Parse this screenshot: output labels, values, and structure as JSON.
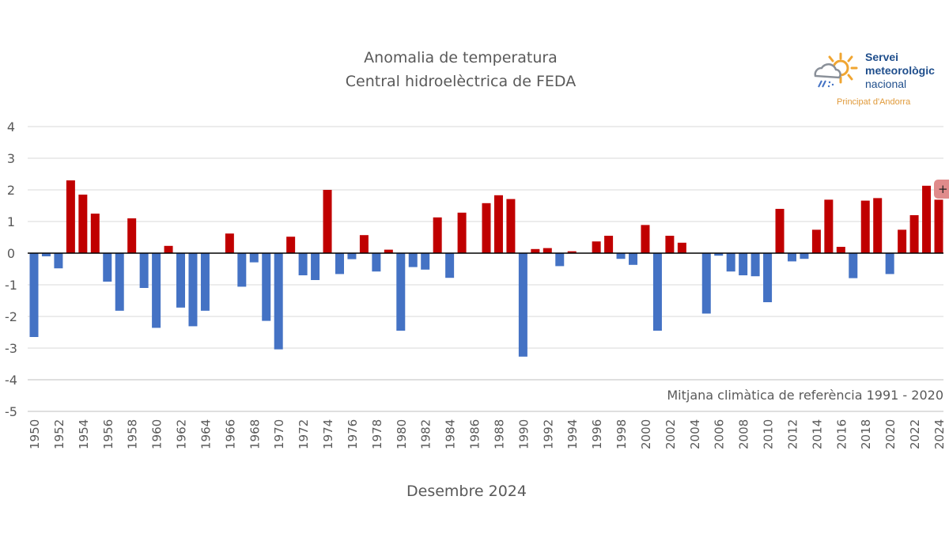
{
  "header": {
    "title_line1": "Anomalia de temperatura",
    "title_line2": "Central hidroelèctrica de FEDA"
  },
  "logo": {
    "line1": "Servei",
    "line2": "meteorològic",
    "line3": "nacional",
    "subtitle": "Principat d'Andorra",
    "icon": "sun-cloud-rain-icon"
  },
  "badge": {
    "label": "+"
  },
  "note": "Mitjana climàtica de referència 1991 - 2020",
  "colors": {
    "positive": "#c00000",
    "negative": "#4472c4",
    "grid": "#d9d9d9",
    "axis": "#000000",
    "text": "#595959"
  },
  "chart_data": {
    "type": "bar",
    "title": "Anomalia de temperatura — Central hidroelèctrica de FEDA",
    "xlabel": "Desembre 2024",
    "ylabel": "",
    "ylim": [
      -5,
      4
    ],
    "yticks": [
      4,
      3,
      2,
      1,
      0,
      -1,
      -2,
      -3,
      -4,
      -5
    ],
    "grid": true,
    "x_tick_step": 2,
    "categories": [
      "1950",
      "1951",
      "1952",
      "1953",
      "1954",
      "1955",
      "1956",
      "1957",
      "1958",
      "1959",
      "1960",
      "1961",
      "1962",
      "1963",
      "1964",
      "1965",
      "1966",
      "1967",
      "1968",
      "1969",
      "1970",
      "1971",
      "1972",
      "1973",
      "1974",
      "1975",
      "1976",
      "1977",
      "1978",
      "1979",
      "1980",
      "1981",
      "1982",
      "1983",
      "1984",
      "1985",
      "1986",
      "1987",
      "1988",
      "1989",
      "1990",
      "1991",
      "1992",
      "1993",
      "1994",
      "1995",
      "1996",
      "1997",
      "1998",
      "1999",
      "2000",
      "2001",
      "2002",
      "2003",
      "2004",
      "2005",
      "2006",
      "2007",
      "2008",
      "2009",
      "2010",
      "2011",
      "2012",
      "2013",
      "2014",
      "2015",
      "2016",
      "2017",
      "2018",
      "2019",
      "2020",
      "2021",
      "2022",
      "2023",
      "2024"
    ],
    "values": [
      -2.65,
      -0.1,
      -0.48,
      2.3,
      1.85,
      1.25,
      -0.9,
      -1.82,
      1.1,
      -1.1,
      -2.36,
      0.23,
      -1.72,
      -2.31,
      -1.82,
      0,
      0.62,
      -1.06,
      -0.29,
      -2.14,
      -3.04,
      0.52,
      -0.7,
      -0.85,
      2.0,
      -0.66,
      -0.19,
      0.57,
      -0.58,
      0.11,
      -2.45,
      -0.44,
      -0.52,
      1.13,
      -0.78,
      1.28,
      0,
      1.58,
      1.83,
      1.71,
      -3.27,
      0.13,
      0.16,
      -0.41,
      0.06,
      0,
      0.37,
      0.55,
      -0.18,
      -0.37,
      0.89,
      -2.45,
      0.55,
      0.33,
      0,
      -1.91,
      -0.08,
      -0.58,
      -0.7,
      -0.73,
      -1.55,
      1.4,
      -0.26,
      -0.18,
      0.74,
      1.69,
      0.2,
      -0.79,
      1.66,
      1.74,
      -0.66,
      0.74,
      1.2,
      2.13,
      1.69
    ],
    "legend": "none",
    "annotations": [
      "Mitjana climàtica de referència 1991 - 2020"
    ]
  }
}
